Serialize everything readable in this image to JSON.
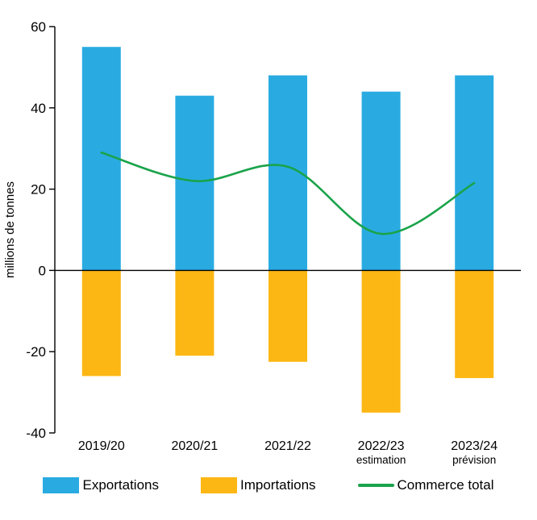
{
  "chart_data": {
    "type": "bar",
    "categories": [
      "2019/20",
      "2020/21",
      "2021/22",
      "2022/23",
      "2023/24"
    ],
    "category_sublabels": [
      "",
      "",
      "",
      "estimation",
      "prévision"
    ],
    "series": [
      {
        "name": "Exportations",
        "type": "bar",
        "color": "#29abe2",
        "values": [
          55,
          43,
          48,
          44,
          48
        ]
      },
      {
        "name": "Importations",
        "type": "bar",
        "color": "#fcb714",
        "values": [
          -26,
          -21,
          -22.5,
          -35,
          -26.5
        ]
      },
      {
        "name": "Commerce total",
        "type": "line",
        "color": "#1aa34a",
        "values": [
          29,
          22,
          25.5,
          9,
          21.5
        ]
      }
    ],
    "title": "",
    "xlabel": "",
    "ylabel": "millions de tonnes",
    "ylim": [
      -40,
      60
    ],
    "ytick_step": 20,
    "grid": false,
    "legend_position": "bottom",
    "axis_color": "#000000"
  }
}
